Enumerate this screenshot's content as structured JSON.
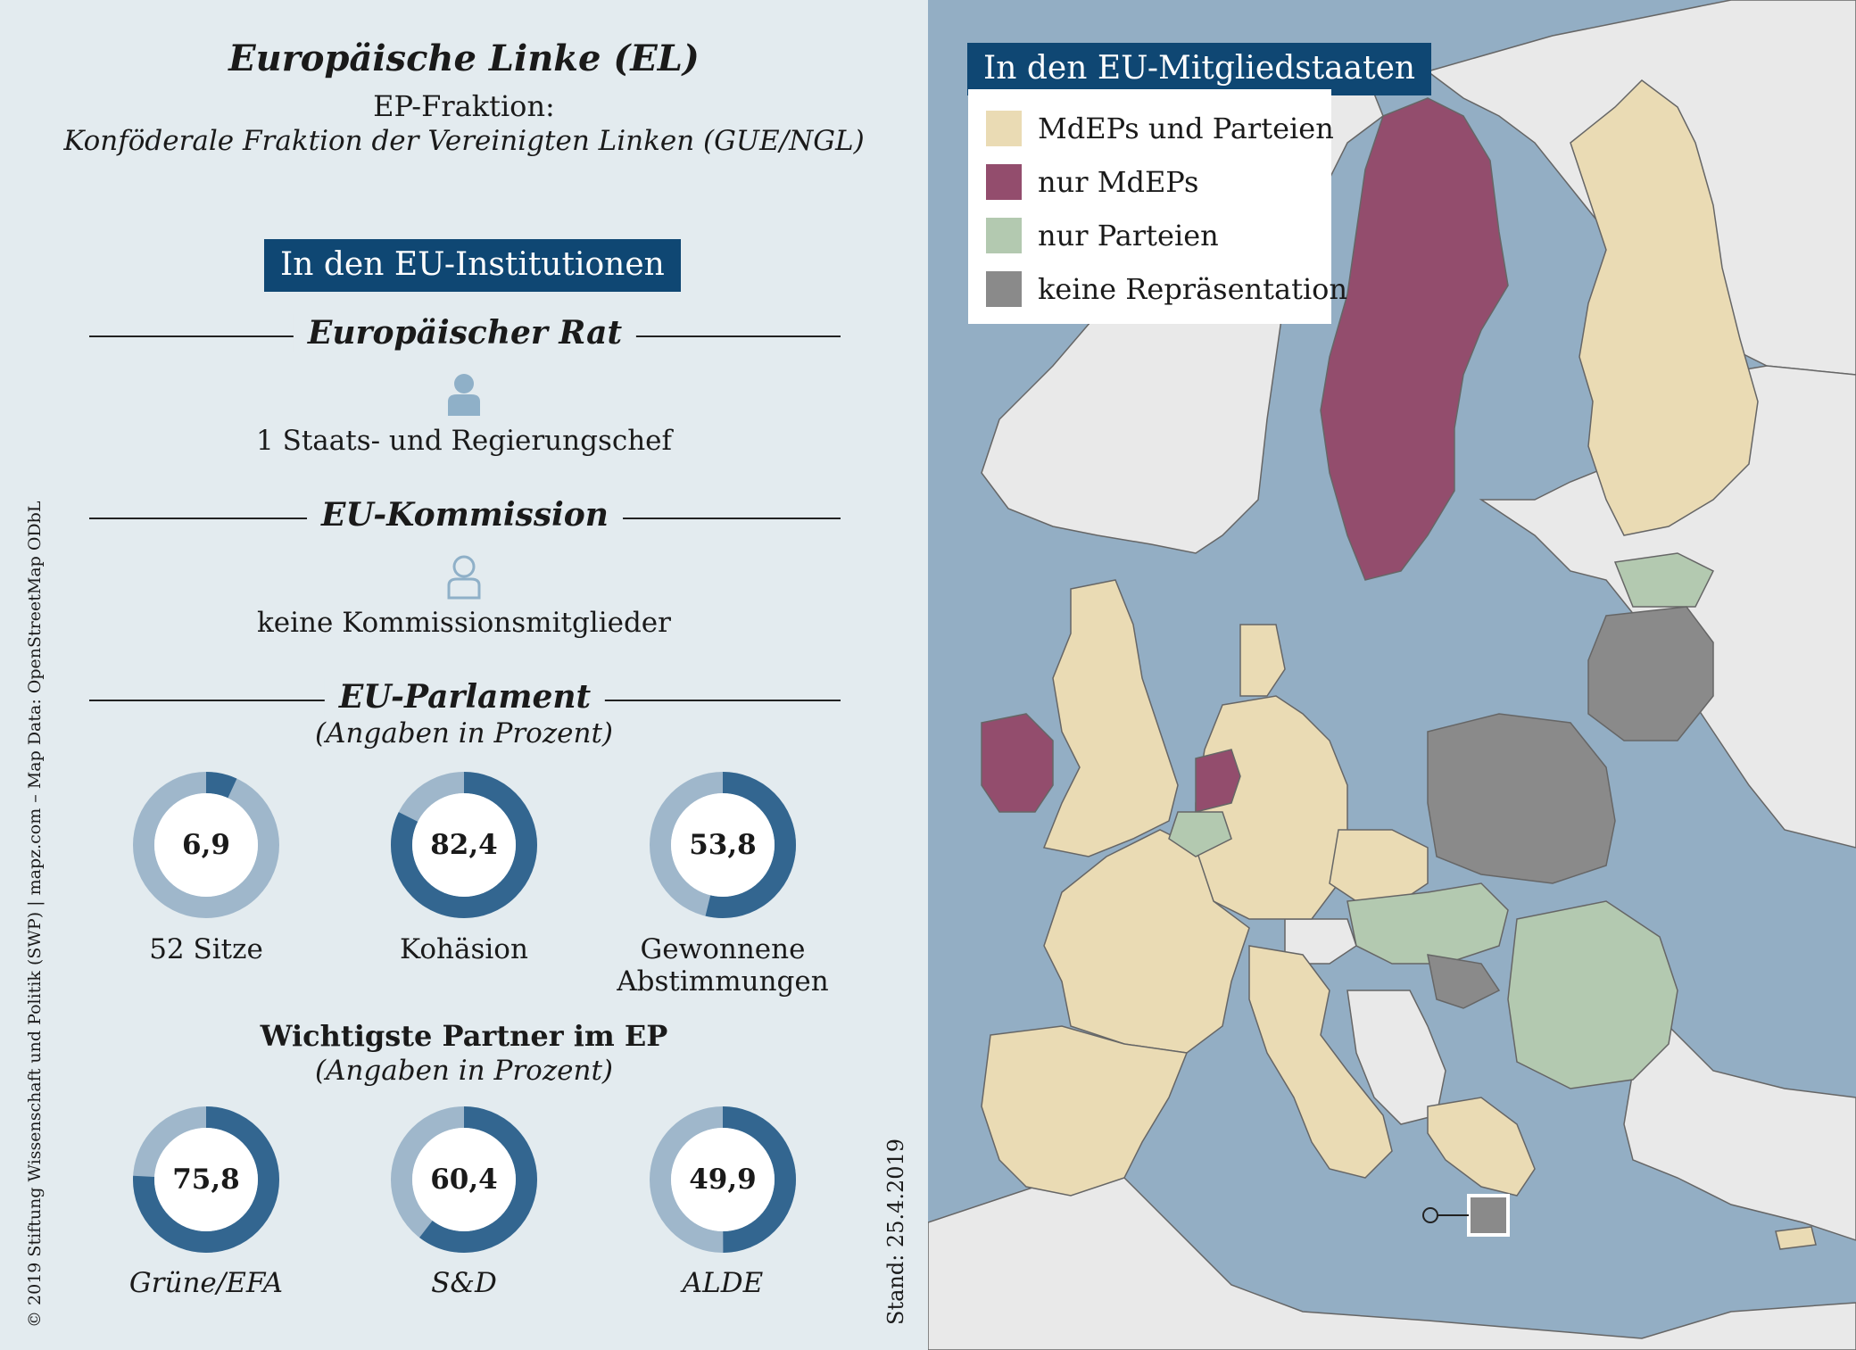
{
  "header": {
    "title": "Europäische Linke (EL)",
    "subtitle_1": "EP-Fraktion:",
    "subtitle_2": "Konföderale Fraktion der Vereinigten Linken (GUE/NGL)"
  },
  "institutions": {
    "banner": "In den EU-Institutionen",
    "council_heading": "Europäischer Rat",
    "council_text": "1 Staats- und Regierungschef",
    "commission_heading": "EU-Kommission",
    "commission_text": "keine Kommissionsmitglieder",
    "parliament_heading": "EU-Parlament",
    "parliament_note": "(Angaben in Prozent)"
  },
  "parliament_stats": [
    {
      "value": 6.9,
      "label": "6,9",
      "caption": "52 Sitze"
    },
    {
      "value": 82.4,
      "label": "82,4",
      "caption": "Kohäsion"
    },
    {
      "value": 53.8,
      "label": "53,8",
      "caption_1": "Gewonnene",
      "caption_2": "Abstimmungen"
    }
  ],
  "partners": {
    "heading": "Wichtigste Partner im EP",
    "note": "(Angaben in Prozent)",
    "items": [
      {
        "value": 75.8,
        "label": "75,8",
        "caption": "Grüne/EFA"
      },
      {
        "value": 60.4,
        "label": "60,4",
        "caption": "S&D"
      },
      {
        "value": 49.9,
        "label": "49,9",
        "caption": "ALDE"
      }
    ]
  },
  "credits": "© 2019 Stiftung Wissenschaft und Politik (SWP) | mapz.com – Map Data: OpenStreetMap ODbL",
  "date": "Stand: 25.4.2019",
  "map": {
    "banner": "In den EU-Mitgliedstaaten",
    "legend": [
      {
        "label": "MdEPs und Parteien",
        "color": "#eadbb4"
      },
      {
        "label": "nur MdEPs",
        "color": "#934d6d"
      },
      {
        "label": "nur Parteien",
        "color": "#b3c9b0"
      },
      {
        "label": "keine Repräsentation",
        "color": "#8a8a8a"
      }
    ]
  },
  "colors": {
    "donut_dark": "#336690",
    "donut_light": "#9fb7cb",
    "banner_bg": "#0f4773",
    "sea": "#93aec4",
    "non_eu": "#e9e9e9"
  }
}
